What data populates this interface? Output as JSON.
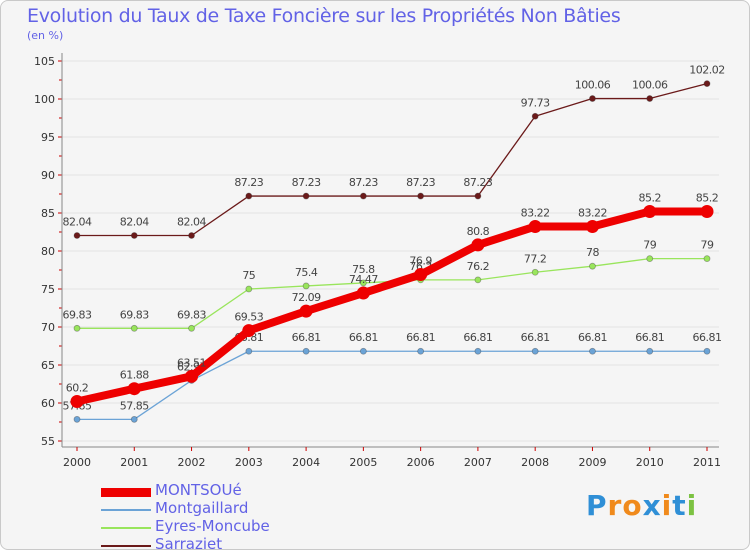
{
  "chart_data": {
    "type": "line",
    "title": "Evolution du Taux de Taxe Foncière sur les Propriétés Non Bâties",
    "subtitle": "(en %)",
    "xlabel": "",
    "ylabel": "",
    "categories": [
      "2000",
      "2001",
      "2002",
      "2003",
      "2004",
      "2005",
      "2006",
      "2007",
      "2008",
      "2009",
      "2010",
      "2011"
    ],
    "ylim": [
      55,
      105
    ],
    "yticks": [
      55,
      60,
      65,
      70,
      75,
      80,
      85,
      90,
      95,
      100,
      105
    ],
    "grid": true,
    "legend_position": "bottom-left",
    "series": [
      {
        "name": "Sarraziet",
        "color": "#6b1a1a",
        "values": [
          82.04,
          82.04,
          82.04,
          87.23,
          87.23,
          87.23,
          87.23,
          87.23,
          97.73,
          100.06,
          100.06,
          102.02
        ],
        "labels": [
          "82.04",
          "82.04",
          "82.04",
          "87.23",
          "87.23",
          "87.23",
          "87.23",
          "87.23",
          "97.73",
          "100.06",
          "100.06",
          "102.02"
        ]
      },
      {
        "name": "Eyres-Moncube",
        "color": "#99e55c",
        "values": [
          69.83,
          69.83,
          69.83,
          75,
          75.4,
          75.8,
          76.2,
          76.2,
          77.2,
          78,
          79,
          79
        ],
        "labels": [
          "69.83",
          "69.83",
          "69.83",
          "75",
          "75.4",
          "75.8",
          "76.2",
          "76.2",
          "77.2",
          "78",
          "79",
          "79"
        ]
      },
      {
        "name": "Montgaillard",
        "color": "#6ba3d6",
        "values": [
          57.85,
          57.85,
          62.97,
          66.81,
          66.81,
          66.81,
          66.81,
          66.81,
          66.81,
          66.81,
          66.81,
          66.81
        ],
        "labels": [
          "57.85",
          "57.85",
          "62.97",
          "66.81",
          "66.81",
          "66.81",
          "66.81",
          "66.81",
          "66.81",
          "66.81",
          "66.81",
          "66.81"
        ]
      },
      {
        "name": "MONTSOUé",
        "color": "#ee0000",
        "values": [
          60.2,
          61.88,
          63.51,
          69.53,
          72.09,
          74.47,
          76.9,
          80.8,
          83.22,
          83.22,
          85.2,
          85.2
        ],
        "labels": [
          "60.2",
          "61.88",
          "63.51",
          "69.53",
          "72.09",
          "74.47",
          "76.9",
          "80.8",
          "83.22",
          "83.22",
          "85.2",
          "85.2"
        ]
      }
    ],
    "legend_order": [
      "MONTSOUé",
      "Montgaillard",
      "Eyres-Moncube",
      "Sarraziet"
    ]
  },
  "colors": {
    "title": "#6262e6",
    "axis_text": "#333333",
    "grid": "#e2e2e2",
    "axis": "#888888",
    "axis_tick": "#cc0000"
  },
  "logo": {
    "letters": [
      "P",
      "r",
      "o",
      "x",
      "i",
      "t",
      "i"
    ],
    "letter_colors": [
      "#2f8fd6",
      "#f08a1c",
      "#f08a1c",
      "#2f8fd6",
      "#f08a1c",
      "#2f8fd6",
      "#7cc242"
    ]
  }
}
